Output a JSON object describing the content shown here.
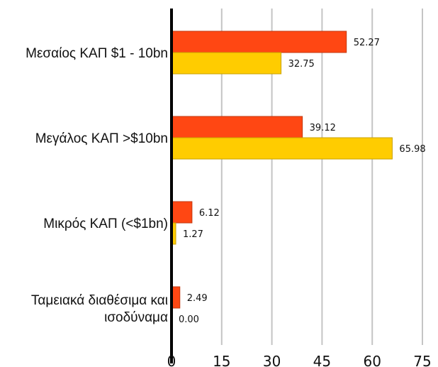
{
  "chart_data": {
    "type": "bar",
    "orientation": "horizontal",
    "title": "",
    "xlabel": "",
    "ylabel": "",
    "categories": [
      [
        "Μεσαίος ΚΑΠ $1 - 10bn"
      ],
      [
        "Μεγάλος ΚΑΠ >$10bn"
      ],
      [
        "Μικρός ΚΑΠ (<$1bn)"
      ],
      [
        "Ταμειακά διαθέσιμα και",
        "ισοδύναμα"
      ]
    ],
    "series": [
      {
        "color": "#ff4713",
        "values": [
          52.27,
          39.12,
          6.12,
          2.49
        ],
        "labels": [
          "52.27",
          "39.12",
          "6.12",
          "2.49"
        ]
      },
      {
        "color": "#ffcc00",
        "values": [
          32.75,
          65.98,
          1.27,
          0.0
        ],
        "labels": [
          "32.75",
          "65.98",
          "1.27",
          "0.00"
        ]
      }
    ],
    "xlim": [
      0,
      75
    ],
    "ticks": [
      0,
      15,
      30,
      45,
      60,
      75
    ],
    "tick_labels": [
      "0",
      "15",
      "30",
      "45",
      "60",
      "75"
    ],
    "grid": "vertical",
    "legend": "none"
  }
}
